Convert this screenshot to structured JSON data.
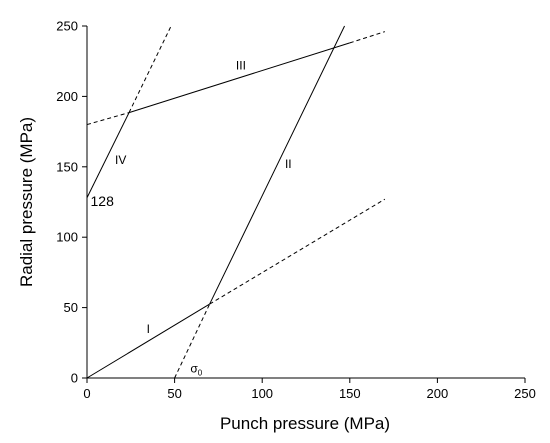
{
  "chart_data": {
    "type": "line",
    "title": "",
    "xlabel": "Punch pressure (MPa)",
    "ylabel": "Radial pressure (MPa)",
    "xlim": [
      0,
      250
    ],
    "ylim": [
      0,
      250
    ],
    "xticks": [
      0,
      50,
      100,
      150,
      200,
      250
    ],
    "yticks": [
      0,
      50,
      100,
      150,
      200,
      250
    ],
    "grid": false,
    "series": [
      {
        "name": "I",
        "style": "solid",
        "points": [
          [
            0,
            0
          ],
          [
            70,
            52.5
          ]
        ]
      },
      {
        "name": "I (extension)",
        "style": "dashed",
        "points": [
          [
            70,
            52.5
          ],
          [
            170,
            127
          ]
        ]
      },
      {
        "name": "II",
        "style": "solid",
        "points": [
          [
            70,
            52.5
          ],
          [
            147,
            250
          ]
        ]
      },
      {
        "name": "II (extension)",
        "style": "dashed",
        "points": [
          [
            50,
            0
          ],
          [
            70,
            52.5
          ]
        ]
      },
      {
        "name": "III",
        "style": "solid",
        "points": [
          [
            24,
            188.5
          ],
          [
            150,
            238
          ]
        ]
      },
      {
        "name": "III (extension)",
        "style": "dashed",
        "points": [
          [
            0,
            180
          ],
          [
            24,
            188.5
          ]
        ]
      },
      {
        "name": "III (extension 2)",
        "style": "dashed",
        "points": [
          [
            150,
            238
          ],
          [
            170,
            246
          ]
        ]
      },
      {
        "name": "IV",
        "style": "solid",
        "points": [
          [
            0,
            128
          ],
          [
            24,
            188.5
          ]
        ]
      },
      {
        "name": "IV (extension)",
        "style": "dashed",
        "points": [
          [
            24,
            188.5
          ],
          [
            48,
            250
          ]
        ]
      }
    ],
    "annotations": [
      {
        "text": "I",
        "x": 34,
        "y": 32,
        "size": "small"
      },
      {
        "text": "II",
        "x": 113,
        "y": 149,
        "size": "small"
      },
      {
        "text": "III",
        "x": 85,
        "y": 219,
        "size": "small"
      },
      {
        "text": "IV",
        "x": 16,
        "y": 152,
        "size": "small"
      },
      {
        "text": "128",
        "x": 2,
        "y": 122,
        "size": "large"
      }
    ],
    "sigma_label": {
      "base": "σ",
      "sub": "0",
      "x": 59,
      "y": 4
    }
  }
}
